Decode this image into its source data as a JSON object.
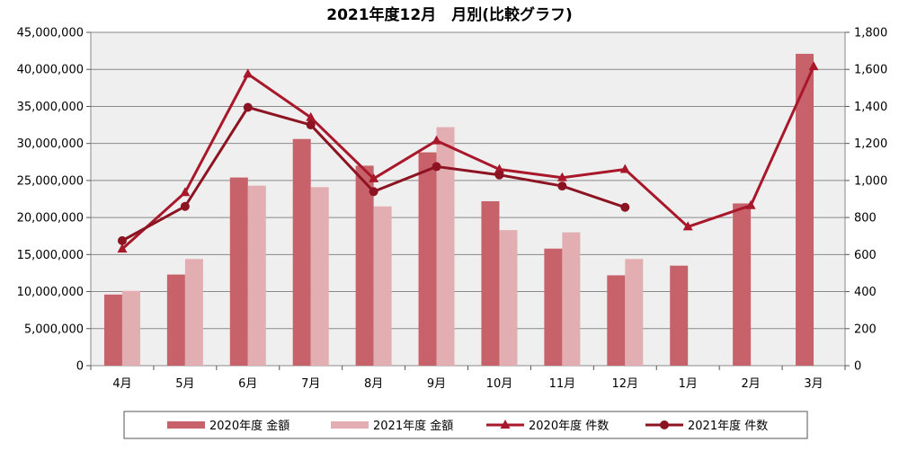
{
  "chart_data": {
    "type": "bar",
    "title": "2021年度12月　月別(比較グラフ)",
    "categories": [
      "4月",
      "5月",
      "6月",
      "7月",
      "8月",
      "9月",
      "10月",
      "11月",
      "12月",
      "1月",
      "2月",
      "3月"
    ],
    "y_left": {
      "min": 0,
      "max": 45000000,
      "step": 5000000,
      "tick_labels": [
        "0",
        "5,000,000",
        "10,000,000",
        "15,000,000",
        "20,000,000",
        "25,000,000",
        "30,000,000",
        "35,000,000",
        "40,000,000",
        "45,000,000"
      ]
    },
    "y_right": {
      "min": 0,
      "max": 1800,
      "step": 200,
      "tick_labels": [
        "0",
        "200",
        "400",
        "600",
        "800",
        "1,000",
        "1,200",
        "1,400",
        "1,600",
        "1,800"
      ]
    },
    "grid": "horizontal",
    "legend_position": "bottom",
    "series": [
      {
        "name": "2020年度 金額",
        "type": "bar",
        "axis": "left",
        "color": "#c8626a",
        "values": [
          9600000,
          12300000,
          25400000,
          30600000,
          27000000,
          28800000,
          22200000,
          15800000,
          12200000,
          13500000,
          21900000,
          42100000
        ]
      },
      {
        "name": "2021年度 金額",
        "type": "bar",
        "axis": "left",
        "color": "#e2aeb1",
        "values": [
          10100000,
          14400000,
          24300000,
          24100000,
          21500000,
          32200000,
          18300000,
          18000000,
          14400000,
          null,
          null,
          null
        ]
      },
      {
        "name": "2020年度 件数",
        "type": "line",
        "marker": "triangle",
        "axis": "right",
        "color": "#a8182a",
        "values": [
          630,
          935,
          1575,
          1340,
          1010,
          1215,
          1060,
          1015,
          1060,
          750,
          865,
          1615
        ]
      },
      {
        "name": "2021年度 件数",
        "type": "line",
        "marker": "circle",
        "axis": "right",
        "color": "#8c1422",
        "values": [
          675,
          860,
          1395,
          1300,
          940,
          1075,
          1030,
          970,
          855,
          null,
          null,
          null
        ]
      }
    ]
  }
}
